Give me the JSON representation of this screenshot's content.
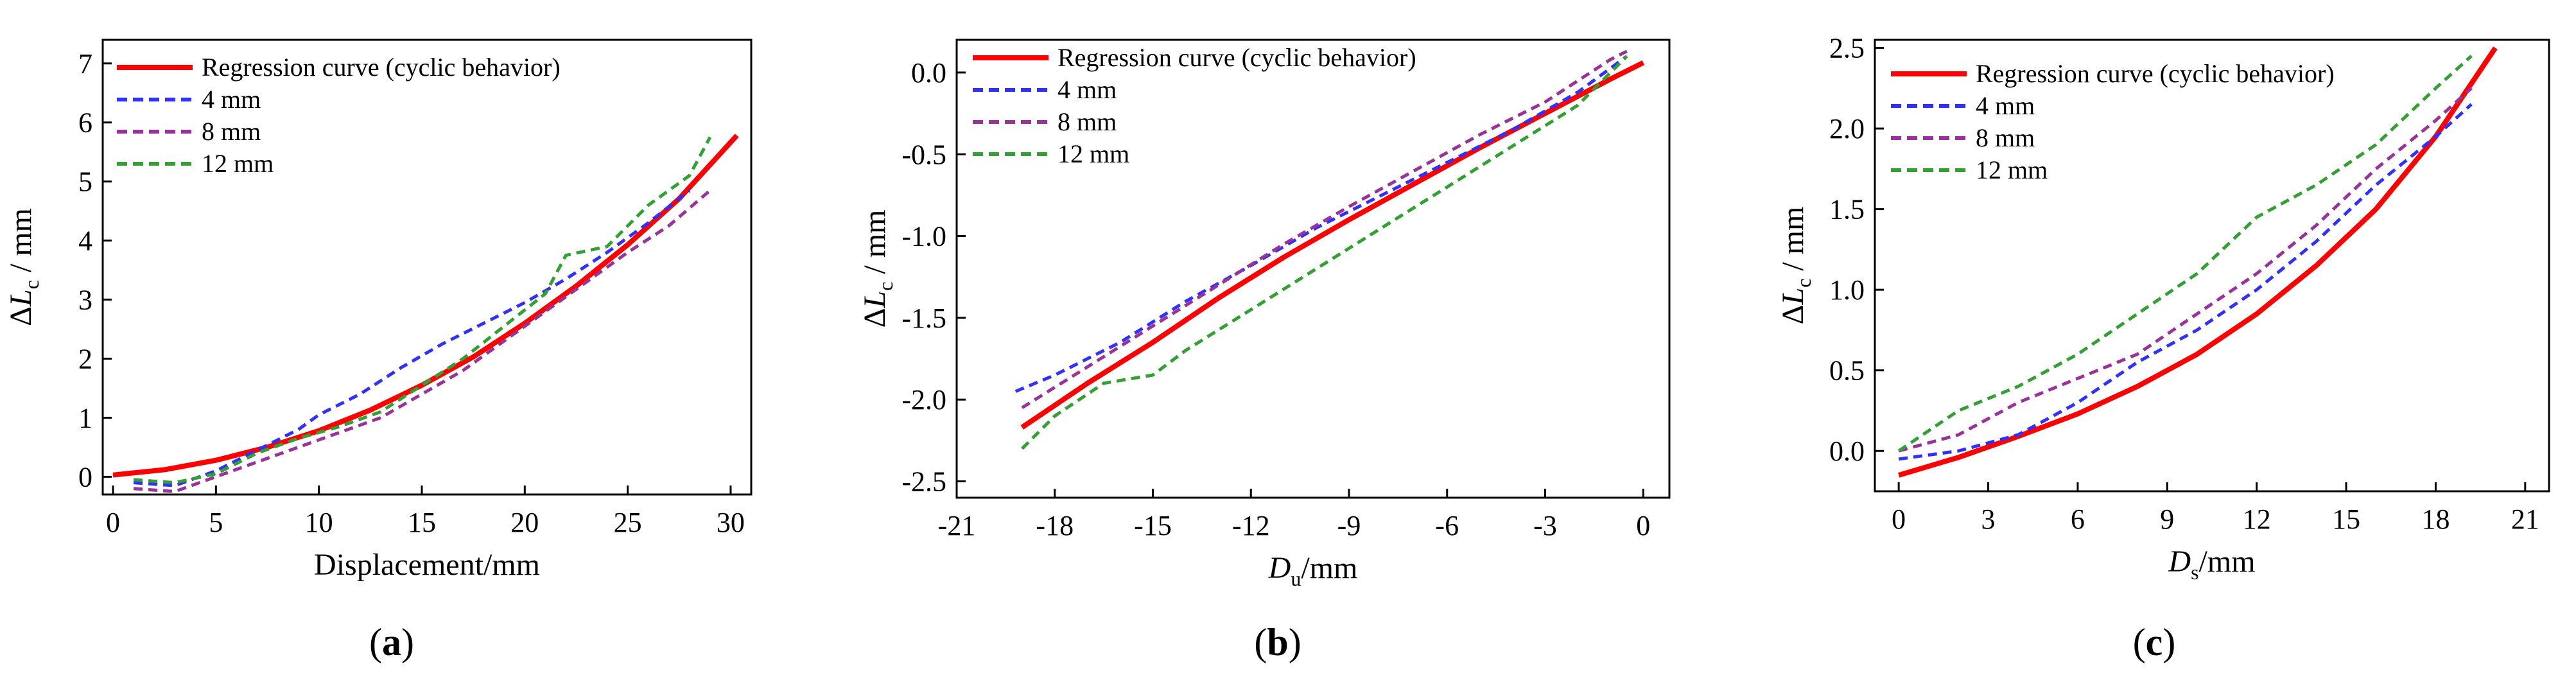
{
  "chart_data": [
    {
      "type": "line",
      "caption": {
        "pre": "(",
        "letter": "a",
        "post": ")"
      },
      "xlabel": "Displacement/mm",
      "ylabel": {
        "pre": "Δ",
        "var": "L",
        "sub": "c",
        "post": " / mm"
      },
      "xlim": [
        -0.5,
        31
      ],
      "ylim": [
        -0.3,
        7.4
      ],
      "xticks": [
        0,
        5,
        10,
        15,
        20,
        25,
        30
      ],
      "yticks": [
        0,
        1,
        2,
        3,
        4,
        5,
        6,
        7
      ],
      "legend_position": "top-left",
      "series": [
        {
          "name": "Regression curve (cyclic behavior)",
          "color": "#ff0000",
          "style": "solid",
          "x": [
            0,
            2.5,
            5,
            7.5,
            10,
            12.5,
            15,
            17.5,
            20,
            22.5,
            25,
            27.5,
            30.3
          ],
          "y": [
            0.03,
            0.12,
            0.28,
            0.5,
            0.78,
            1.13,
            1.55,
            2.03,
            2.6,
            3.23,
            3.93,
            4.71,
            5.78
          ]
        },
        {
          "name": "4 mm",
          "color": "#3030ff",
          "style": "dashed",
          "x": [
            1,
            3,
            5,
            7,
            9,
            10,
            12,
            14,
            16,
            18,
            20,
            22,
            24,
            26,
            28
          ],
          "y": [
            -0.1,
            -0.15,
            0.1,
            0.45,
            0.8,
            1.05,
            1.4,
            1.85,
            2.25,
            2.6,
            2.95,
            3.35,
            3.8,
            4.3,
            4.85
          ]
        },
        {
          "name": "8 mm",
          "color": "#993399",
          "style": "dashed",
          "x": [
            1,
            3,
            5,
            7,
            9,
            11,
            13,
            15,
            17,
            19,
            21,
            23,
            25,
            27,
            29
          ],
          "y": [
            -0.2,
            -0.25,
            0.0,
            0.25,
            0.5,
            0.75,
            1.0,
            1.4,
            1.8,
            2.3,
            2.8,
            3.3,
            3.8,
            4.25,
            4.85
          ]
        },
        {
          "name": "12 mm",
          "color": "#33a033",
          "style": "dashed",
          "x": [
            1,
            3,
            5,
            7,
            9,
            11,
            13,
            15,
            17,
            19,
            21,
            22,
            24,
            26,
            28,
            29
          ],
          "y": [
            -0.05,
            -0.1,
            0.05,
            0.4,
            0.65,
            0.85,
            1.1,
            1.55,
            2.0,
            2.55,
            3.1,
            3.75,
            3.9,
            4.6,
            5.1,
            5.75
          ]
        }
      ]
    },
    {
      "type": "line",
      "caption": {
        "pre": "(",
        "letter": "b",
        "post": ")"
      },
      "xlabel": {
        "var": "D",
        "sub": "u",
        "post": "/mm"
      },
      "ylabel": {
        "pre": "Δ",
        "var": "L",
        "sub": "c",
        "post": " / mm"
      },
      "xlim": [
        -21,
        0.8
      ],
      "ylim": [
        -2.6,
        0.2
      ],
      "xticks": [
        -21,
        -18,
        -15,
        -12,
        -9,
        -6,
        -3,
        0
      ],
      "yticks": [
        -2.5,
        -2.0,
        -1.5,
        -1.0,
        -0.5,
        0.0
      ],
      "ytick_labels": [
        "-2.5",
        "-2.0",
        "-1.5",
        "-1.0",
        "-0.5",
        "0.0"
      ],
      "legend_position": "top-left",
      "series": [
        {
          "name": "Regression curve (cyclic behavior)",
          "color": "#ff0000",
          "style": "solid",
          "x": [
            -19,
            -17,
            -15,
            -13,
            -11,
            -9,
            -7,
            -5,
            -3,
            -1,
            0
          ],
          "y": [
            -2.17,
            -1.9,
            -1.65,
            -1.38,
            -1.13,
            -0.9,
            -0.68,
            -0.46,
            -0.25,
            -0.04,
            0.06
          ]
        },
        {
          "name": "4 mm",
          "color": "#3030ff",
          "style": "dashed",
          "x": [
            -19.2,
            -18,
            -16,
            -14,
            -12,
            -10,
            -8,
            -6,
            -4,
            -2,
            -0.5
          ],
          "y": [
            -1.95,
            -1.85,
            -1.65,
            -1.4,
            -1.18,
            -0.95,
            -0.75,
            -0.55,
            -0.35,
            -0.12,
            0.1
          ]
        },
        {
          "name": "8 mm",
          "color": "#993399",
          "style": "dashed",
          "x": [
            -19,
            -17,
            -15,
            -13,
            -11,
            -9,
            -7,
            -5,
            -3,
            -1,
            -0.5
          ],
          "y": [
            -2.05,
            -1.8,
            -1.55,
            -1.3,
            -1.05,
            -0.82,
            -0.6,
            -0.38,
            -0.18,
            0.08,
            0.13
          ]
        },
        {
          "name": "12 mm",
          "color": "#33a033",
          "style": "dashed",
          "x": [
            -19,
            -18,
            -16.5,
            -15,
            -14,
            -12,
            -10,
            -8,
            -6,
            -4,
            -2,
            -0.5
          ],
          "y": [
            -2.3,
            -2.1,
            -1.9,
            -1.85,
            -1.7,
            -1.45,
            -1.2,
            -0.95,
            -0.7,
            -0.45,
            -0.2,
            0.1
          ]
        }
      ]
    },
    {
      "type": "line",
      "caption": {
        "pre": "(",
        "letter": "c",
        "post": ")"
      },
      "xlabel": {
        "var": "D",
        "sub": "s",
        "post": "/mm"
      },
      "ylabel": {
        "pre": "Δ",
        "var": "L",
        "sub": "c",
        "post": " / mm"
      },
      "xlim": [
        -0.8,
        21.8
      ],
      "ylim": [
        -0.25,
        2.55
      ],
      "xticks": [
        0,
        3,
        6,
        9,
        12,
        15,
        18,
        21
      ],
      "yticks": [
        0,
        0.5,
        1.0,
        1.5,
        2.0,
        2.5
      ],
      "ytick_labels": [
        "0.0",
        "0.5",
        "1.0",
        "1.5",
        "2.0",
        "2.5"
      ],
      "legend_position": "top-left",
      "series": [
        {
          "name": "Regression curve (cyclic behavior)",
          "color": "#ff0000",
          "style": "solid",
          "x": [
            0,
            2,
            4,
            6,
            8,
            10,
            12,
            14,
            16,
            18,
            20
          ],
          "y": [
            -0.15,
            -0.04,
            0.09,
            0.23,
            0.4,
            0.6,
            0.85,
            1.15,
            1.5,
            1.95,
            2.5
          ]
        },
        {
          "name": "4 mm",
          "color": "#3030ff",
          "style": "dashed",
          "x": [
            0,
            2,
            4,
            6,
            8,
            10,
            12,
            14,
            16,
            18,
            19.2
          ],
          "y": [
            -0.05,
            0.0,
            0.1,
            0.3,
            0.55,
            0.75,
            1.0,
            1.3,
            1.65,
            1.95,
            2.15
          ]
        },
        {
          "name": "8 mm",
          "color": "#993399",
          "style": "dashed",
          "x": [
            0,
            2,
            4,
            6,
            8,
            10,
            12,
            14,
            16,
            18,
            19.2
          ],
          "y": [
            0.0,
            0.1,
            0.3,
            0.45,
            0.6,
            0.85,
            1.1,
            1.4,
            1.75,
            2.05,
            2.25
          ]
        },
        {
          "name": "12 mm",
          "color": "#33a033",
          "style": "dashed",
          "x": [
            0,
            2,
            4,
            6,
            8,
            10,
            12,
            14,
            16,
            18,
            19.2
          ],
          "y": [
            0.0,
            0.25,
            0.4,
            0.6,
            0.85,
            1.1,
            1.45,
            1.65,
            1.9,
            2.25,
            2.45
          ]
        }
      ]
    }
  ]
}
